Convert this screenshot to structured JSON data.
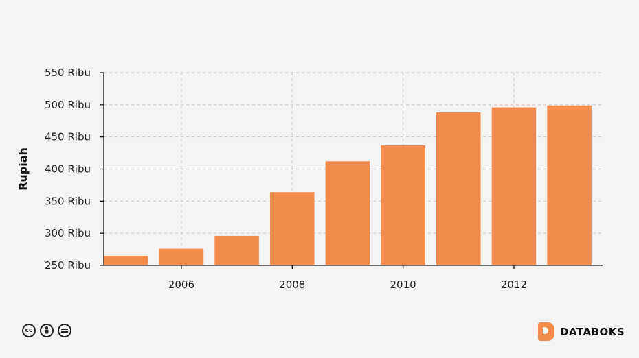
{
  "chart_data": {
    "type": "bar",
    "title": "",
    "xlabel": "",
    "ylabel": "Rupiah",
    "x": [
      2005,
      2006,
      2007,
      2008,
      2009,
      2010,
      2011,
      2012,
      2013
    ],
    "x_tick_labels": [
      "2006",
      "2008",
      "2010",
      "2012"
    ],
    "values": [
      265,
      276,
      296,
      364,
      412,
      437,
      488,
      496,
      499
    ],
    "unit_suffix": " Ribu",
    "y_ticks": [
      "250 Ribu",
      "300 Ribu",
      "350 Ribu",
      "400 Ribu",
      "450 Ribu",
      "500 Ribu",
      "550 Ribu"
    ],
    "ylim": [
      250,
      550
    ],
    "grid": true,
    "bar_color": "#f28b4b"
  },
  "footer": {
    "license_icons": [
      "cc-icon",
      "by-icon",
      "nd-icon"
    ],
    "cc_text": "cc",
    "brand": "DATABOKS"
  }
}
